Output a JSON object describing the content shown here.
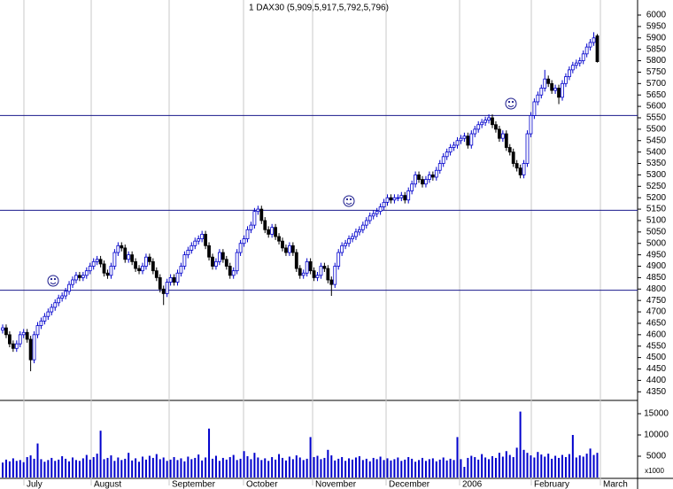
{
  "chart_data": {
    "type": "candlestick",
    "title": "1 DAX30 (5,909,5,917,5,792,5,796)",
    "up_color": "#0000cc",
    "down_color": "#000000",
    "level_color": "#1a1a8c",
    "ylim": [
      4320,
      6066
    ],
    "yticks": [
      4350,
      4400,
      4450,
      4500,
      4550,
      4600,
      4650,
      4700,
      4750,
      4800,
      4850,
      4900,
      4950,
      5000,
      5050,
      5100,
      5150,
      5200,
      5250,
      5300,
      5350,
      5400,
      5450,
      5500,
      5550,
      5600,
      5650,
      5700,
      5750,
      5800,
      5850,
      5900,
      5950,
      6000
    ],
    "levels": [
      5560,
      5145,
      4795
    ],
    "months": [
      "July",
      "August",
      "September",
      "October",
      "November",
      "December",
      "2006",
      "February",
      "March"
    ],
    "ohlc": [
      [
        4620,
        4645,
        4605,
        4630
      ],
      [
        4630,
        4645,
        4585,
        4600
      ],
      [
        4600,
        4615,
        4545,
        4560
      ],
      [
        4560,
        4575,
        4525,
        4540
      ],
      [
        4540,
        4575,
        4525,
        4560
      ],
      [
        4560,
        4615,
        4545,
        4600
      ],
      [
        4600,
        4625,
        4585,
        4610
      ],
      [
        4610,
        4625,
        4565,
        4580
      ],
      [
        4580,
        4595,
        4440,
        4490
      ],
      [
        4490,
        4615,
        4475,
        4600
      ],
      [
        4600,
        4655,
        4585,
        4640
      ],
      [
        4640,
        4675,
        4625,
        4660
      ],
      [
        4660,
        4695,
        4645,
        4680
      ],
      [
        4680,
        4715,
        4665,
        4700
      ],
      [
        4700,
        4735,
        4685,
        4720
      ],
      [
        4720,
        4755,
        4705,
        4740
      ],
      [
        4740,
        4775,
        4725,
        4760
      ],
      [
        4760,
        4785,
        4745,
        4770
      ],
      [
        4770,
        4805,
        4755,
        4790
      ],
      [
        4790,
        4835,
        4775,
        4820
      ],
      [
        4820,
        4855,
        4805,
        4840
      ],
      [
        4840,
        4875,
        4825,
        4860
      ],
      [
        4860,
        4875,
        4835,
        4850
      ],
      [
        4850,
        4875,
        4835,
        4860
      ],
      [
        4860,
        4895,
        4845,
        4880
      ],
      [
        4880,
        4915,
        4865,
        4900
      ],
      [
        4900,
        4935,
        4885,
        4920
      ],
      [
        4920,
        4945,
        4905,
        4930
      ],
      [
        4930,
        4945,
        4895,
        4910
      ],
      [
        4910,
        4925,
        4855,
        4870
      ],
      [
        4870,
        4885,
        4845,
        4860
      ],
      [
        4860,
        4915,
        4845,
        4900
      ],
      [
        4900,
        4975,
        4885,
        4960
      ],
      [
        4960,
        5005,
        4945,
        4990
      ],
      [
        4990,
        5005,
        4965,
        4980
      ],
      [
        4980,
        4995,
        4915,
        4930
      ],
      [
        4930,
        4965,
        4915,
        4950
      ],
      [
        4950,
        4965,
        4905,
        4920
      ],
      [
        4920,
        4935,
        4875,
        4890
      ],
      [
        4890,
        4905,
        4865,
        4880
      ],
      [
        4880,
        4915,
        4865,
        4900
      ],
      [
        4900,
        4955,
        4885,
        4940
      ],
      [
        4940,
        4955,
        4905,
        4920
      ],
      [
        4920,
        4935,
        4865,
        4880
      ],
      [
        4880,
        4895,
        4835,
        4850
      ],
      [
        4850,
        4865,
        4785,
        4800
      ],
      [
        4800,
        4815,
        4730,
        4780
      ],
      [
        4780,
        4845,
        4765,
        4830
      ],
      [
        4830,
        4865,
        4815,
        4850
      ],
      [
        4850,
        4865,
        4815,
        4830
      ],
      [
        4830,
        4885,
        4815,
        4870
      ],
      [
        4870,
        4915,
        4855,
        4900
      ],
      [
        4900,
        4965,
        4885,
        4950
      ],
      [
        4950,
        4985,
        4935,
        4970
      ],
      [
        4970,
        5005,
        4955,
        4990
      ],
      [
        4990,
        5025,
        4975,
        5010
      ],
      [
        5010,
        5035,
        4995,
        5020
      ],
      [
        5020,
        5055,
        5005,
        5040
      ],
      [
        5040,
        5055,
        4975,
        4990
      ],
      [
        4990,
        5005,
        4925,
        4940
      ],
      [
        4940,
        4955,
        4885,
        4900
      ],
      [
        4900,
        4935,
        4885,
        4920
      ],
      [
        4920,
        4975,
        4905,
        4960
      ],
      [
        4960,
        4975,
        4915,
        4930
      ],
      [
        4930,
        4945,
        4885,
        4900
      ],
      [
        4900,
        4915,
        4845,
        4860
      ],
      [
        4860,
        4895,
        4845,
        4880
      ],
      [
        4880,
        4975,
        4865,
        4960
      ],
      [
        4960,
        5015,
        4945,
        5000
      ],
      [
        5000,
        5035,
        4985,
        5020
      ],
      [
        5020,
        5075,
        5005,
        5060
      ],
      [
        5060,
        5095,
        5045,
        5080
      ],
      [
        5080,
        5155,
        5065,
        5140
      ],
      [
        5140,
        5165,
        5125,
        5150
      ],
      [
        5150,
        5165,
        5085,
        5100
      ],
      [
        5100,
        5115,
        5045,
        5060
      ],
      [
        5060,
        5075,
        5025,
        5040
      ],
      [
        5040,
        5085,
        5025,
        5070
      ],
      [
        5070,
        5085,
        5015,
        5030
      ],
      [
        5030,
        5045,
        4995,
        5010
      ],
      [
        5010,
        5025,
        4965,
        4980
      ],
      [
        4980,
        4995,
        4945,
        4960
      ],
      [
        4960,
        5005,
        4945,
        4990
      ],
      [
        4990,
        5005,
        4945,
        4960
      ],
      [
        4960,
        4975,
        4875,
        4890
      ],
      [
        4890,
        4905,
        4845,
        4860
      ],
      [
        4860,
        4885,
        4845,
        4870
      ],
      [
        4870,
        4935,
        4855,
        4920
      ],
      [
        4920,
        4935,
        4865,
        4880
      ],
      [
        4880,
        4895,
        4835,
        4850
      ],
      [
        4850,
        4875,
        4835,
        4860
      ],
      [
        4860,
        4915,
        4845,
        4900
      ],
      [
        4900,
        4915,
        4875,
        4890
      ],
      [
        4890,
        4905,
        4825,
        4840
      ],
      [
        4840,
        4855,
        4770,
        4820
      ],
      [
        4820,
        4915,
        4805,
        4900
      ],
      [
        4900,
        4975,
        4885,
        4960
      ],
      [
        4960,
        5005,
        4945,
        4990
      ],
      [
        4990,
        5015,
        4975,
        5000
      ],
      [
        5000,
        5035,
        4985,
        5020
      ],
      [
        5020,
        5045,
        5005,
        5030
      ],
      [
        5030,
        5065,
        5015,
        5050
      ],
      [
        5050,
        5075,
        5035,
        5060
      ],
      [
        5060,
        5095,
        5045,
        5080
      ],
      [
        5080,
        5115,
        5065,
        5100
      ],
      [
        5100,
        5135,
        5085,
        5120
      ],
      [
        5120,
        5145,
        5105,
        5130
      ],
      [
        5130,
        5155,
        5115,
        5140
      ],
      [
        5140,
        5175,
        5125,
        5160
      ],
      [
        5160,
        5195,
        5145,
        5180
      ],
      [
        5180,
        5215,
        5165,
        5200
      ],
      [
        5200,
        5215,
        5175,
        5190
      ],
      [
        5190,
        5215,
        5175,
        5200
      ],
      [
        5200,
        5215,
        5185,
        5200
      ],
      [
        5200,
        5225,
        5185,
        5210
      ],
      [
        5210,
        5225,
        5175,
        5190
      ],
      [
        5190,
        5245,
        5175,
        5230
      ],
      [
        5230,
        5275,
        5215,
        5260
      ],
      [
        5260,
        5315,
        5245,
        5300
      ],
      [
        5300,
        5315,
        5265,
        5280
      ],
      [
        5280,
        5295,
        5245,
        5260
      ],
      [
        5260,
        5295,
        5245,
        5280
      ],
      [
        5280,
        5315,
        5265,
        5300
      ],
      [
        5300,
        5315,
        5275,
        5290
      ],
      [
        5290,
        5335,
        5275,
        5320
      ],
      [
        5320,
        5365,
        5305,
        5350
      ],
      [
        5350,
        5395,
        5335,
        5380
      ],
      [
        5380,
        5415,
        5365,
        5400
      ],
      [
        5400,
        5435,
        5385,
        5420
      ],
      [
        5420,
        5445,
        5405,
        5430
      ],
      [
        5430,
        5465,
        5415,
        5450
      ],
      [
        5450,
        5475,
        5435,
        5460
      ],
      [
        5460,
        5485,
        5445,
        5470
      ],
      [
        5470,
        5485,
        5415,
        5430
      ],
      [
        5430,
        5495,
        5415,
        5480
      ],
      [
        5480,
        5515,
        5465,
        5500
      ],
      [
        5500,
        5535,
        5485,
        5520
      ],
      [
        5520,
        5545,
        5505,
        5530
      ],
      [
        5530,
        5555,
        5515,
        5540
      ],
      [
        5540,
        5565,
        5525,
        5550
      ],
      [
        5550,
        5565,
        5505,
        5520
      ],
      [
        5520,
        5535,
        5485,
        5500
      ],
      [
        5500,
        5515,
        5445,
        5460
      ],
      [
        5460,
        5495,
        5445,
        5480
      ],
      [
        5480,
        5495,
        5405,
        5420
      ],
      [
        5420,
        5435,
        5385,
        5400
      ],
      [
        5400,
        5415,
        5335,
        5350
      ],
      [
        5350,
        5365,
        5315,
        5330
      ],
      [
        5330,
        5345,
        5285,
        5300
      ],
      [
        5300,
        5365,
        5285,
        5350
      ],
      [
        5350,
        5495,
        5335,
        5480
      ],
      [
        5480,
        5575,
        5465,
        5560
      ],
      [
        5560,
        5635,
        5545,
        5620
      ],
      [
        5620,
        5665,
        5605,
        5650
      ],
      [
        5650,
        5695,
        5635,
        5680
      ],
      [
        5680,
        5760,
        5665,
        5720
      ],
      [
        5720,
        5735,
        5685,
        5700
      ],
      [
        5700,
        5715,
        5655,
        5670
      ],
      [
        5670,
        5695,
        5655,
        5680
      ],
      [
        5680,
        5695,
        5610,
        5640
      ],
      [
        5640,
        5715,
        5625,
        5700
      ],
      [
        5700,
        5745,
        5685,
        5730
      ],
      [
        5730,
        5775,
        5715,
        5760
      ],
      [
        5760,
        5795,
        5745,
        5780
      ],
      [
        5780,
        5805,
        5765,
        5790
      ],
      [
        5790,
        5815,
        5775,
        5800
      ],
      [
        5800,
        5845,
        5785,
        5830
      ],
      [
        5830,
        5875,
        5815,
        5860
      ],
      [
        5860,
        5895,
        5845,
        5880
      ],
      [
        5880,
        5925,
        5865,
        5900
      ],
      [
        5909,
        5917,
        5792,
        5796
      ]
    ],
    "volume_unit": "x1000",
    "volume_lim": [
      0,
      17500
    ],
    "volume_ticks": [
      5000,
      10000,
      15000
    ],
    "volume": [
      3500,
      4200,
      3800,
      4500,
      3900,
      4100,
      3600,
      4800,
      5200,
      4400,
      8000,
      4300,
      3700,
      4100,
      4600,
      3900,
      4200,
      5000,
      4400,
      3800,
      4700,
      4100,
      3900,
      4500,
      5300,
      4200,
      4800,
      5600,
      11000,
      4300,
      4600,
      5200,
      3900,
      4700,
      4100,
      4400,
      5800,
      4000,
      4500,
      3700,
      4900,
      4200,
      5100,
      4600,
      5500,
      4300,
      4700,
      3900,
      4200,
      4800,
      4100,
      4500,
      3800,
      4900,
      4300,
      4600,
      5400,
      4000,
      4700,
      11500,
      4400,
      5100,
      3900,
      4600,
      4200,
      4800,
      5300,
      4100,
      4400,
      6200,
      5000,
      4300,
      5800,
      4700,
      4100,
      4500,
      3900,
      4800,
      4200,
      5500,
      4600,
      4000,
      4900,
      4300,
      5200,
      4700,
      4100,
      4400,
      9500,
      4800,
      5100,
      4300,
      4600,
      6500,
      5200,
      4000,
      4400,
      4800,
      3900,
      4500,
      4200,
      4700,
      5000,
      4100,
      4400,
      3800,
      4600,
      4300,
      4900,
      4100,
      4500,
      4000,
      4300,
      4700,
      3900,
      4200,
      4800,
      4400,
      3700,
      4100,
      4600,
      3900,
      4300,
      4500,
      3800,
      4200,
      4700,
      4000,
      4400,
      4100,
      9500,
      4300,
      2500,
      4600,
      5100,
      4800,
      4200,
      5500,
      4700,
      4300,
      5000,
      4600,
      5800,
      4900,
      6200,
      5300,
      4800,
      7000,
      15500,
      6500,
      5800,
      5200,
      4700,
      6000,
      5400,
      4900,
      5600,
      4400,
      5100,
      4600,
      5300,
      4800,
      5500,
      10000,
      4700,
      5200,
      4900,
      5600,
      6800,
      5300,
      5800
    ]
  }
}
